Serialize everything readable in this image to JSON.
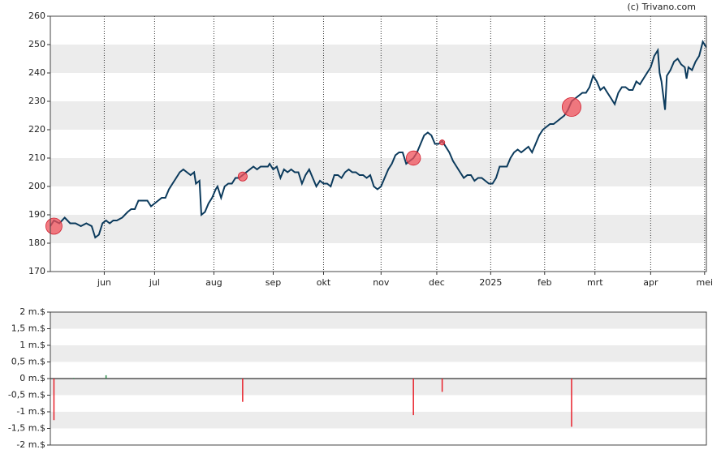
{
  "chart_data": [
    {
      "type": "line",
      "credit": "(c) Trivano.com",
      "color": "#0b3a5c",
      "x": [
        0,
        2,
        5,
        8,
        11,
        14,
        17,
        20,
        23,
        25,
        27,
        29,
        31,
        33,
        35,
        37,
        40,
        43,
        45,
        47,
        49,
        51,
        54,
        56,
        58,
        60,
        62,
        64,
        66,
        68,
        70,
        72,
        74,
        76,
        78,
        80,
        81,
        83,
        84,
        86,
        88,
        90,
        92,
        93,
        95,
        97,
        99,
        101,
        103,
        105,
        107,
        109,
        111,
        113,
        115,
        117,
        119,
        121,
        122,
        124,
        126,
        128,
        130,
        132,
        134,
        136,
        138,
        140,
        142,
        144,
        146,
        148,
        150,
        152,
        154,
        156,
        158,
        160,
        162,
        164,
        166,
        168,
        170,
        172,
        174,
        176,
        178,
        180,
        182,
        184,
        186,
        188,
        190,
        192,
        194,
        196,
        198,
        200,
        202,
        204,
        206,
        208,
        210,
        212,
        214,
        216,
        218,
        220,
        222,
        224,
        226,
        228,
        230,
        232,
        234,
        236,
        238,
        240,
        242,
        244,
        246,
        248,
        250,
        252,
        254,
        256,
        258,
        260,
        262,
        264,
        266,
        268,
        270,
        272,
        274,
        276,
        278,
        280,
        282,
        284,
        286,
        288,
        290,
        292,
        294,
        296,
        298,
        300,
        302,
        304,
        306,
        308,
        310,
        312,
        314,
        316,
        318,
        320,
        322,
        324,
        326,
        328,
        330,
        332,
        334,
        336,
        338,
        339,
        340,
        342,
        343,
        345,
        347,
        349,
        351,
        353,
        354,
        355,
        357,
        359,
        361,
        363,
        365
      ],
      "values": [
        186,
        188,
        187,
        189,
        187,
        187,
        186,
        187,
        186,
        182,
        183,
        187,
        188,
        187,
        188,
        188,
        189,
        191,
        192,
        192,
        195,
        195,
        195,
        193,
        194,
        195,
        196,
        196,
        199,
        201,
        203,
        205,
        206,
        205,
        204,
        205,
        201,
        202,
        190,
        191,
        194,
        196,
        199,
        200,
        196,
        200,
        201,
        201,
        203,
        203,
        204,
        205,
        206,
        207,
        206,
        207,
        207,
        207,
        208,
        206,
        207,
        203,
        206,
        205,
        206,
        205,
        205,
        201,
        204,
        206,
        203,
        200,
        202,
        201,
        201,
        200,
        204,
        204,
        203,
        205,
        206,
        205,
        205,
        204,
        204,
        203,
        204,
        200,
        199,
        200,
        203,
        206,
        208,
        211,
        212,
        212,
        208,
        209,
        210,
        212,
        215,
        218,
        219,
        218,
        215,
        215,
        216,
        214,
        212,
        209,
        207,
        205,
        203,
        204,
        204,
        202,
        203,
        203,
        202,
        201,
        201,
        203,
        207,
        207,
        207,
        210,
        212,
        213,
        212,
        213,
        214,
        212,
        215,
        218,
        220,
        221,
        222,
        222,
        223,
        224,
        225,
        227,
        230,
        231,
        232,
        233,
        233,
        235,
        239,
        237,
        234,
        235,
        233,
        231,
        229,
        233,
        235,
        235,
        234,
        234,
        237,
        236,
        238,
        240,
        242,
        246,
        248,
        240,
        237,
        227,
        239,
        241,
        244,
        245,
        243,
        242,
        238,
        242,
        241,
        244,
        246,
        251,
        249
      ],
      "markers": {
        "color": "#f0505a",
        "x": [
          2,
          107,
          202,
          218,
          290
        ],
        "values": [
          186,
          203.5,
          210,
          215.5,
          228
        ]
      },
      "xlim": [
        0,
        365
      ],
      "ylim": [
        170,
        260
      ],
      "yticks": [
        170,
        180,
        190,
        200,
        210,
        220,
        230,
        240,
        250,
        260
      ],
      "xticks": [
        {
          "value": 30,
          "label": "jun"
        },
        {
          "value": 58,
          "label": "jul"
        },
        {
          "value": 91,
          "label": "aug"
        },
        {
          "value": 124,
          "label": "sep"
        },
        {
          "value": 152,
          "label": "okt"
        },
        {
          "value": 184,
          "label": "nov"
        },
        {
          "value": 215,
          "label": "dec"
        },
        {
          "value": 245,
          "label": "2025"
        },
        {
          "value": 275,
          "label": "feb"
        },
        {
          "value": 303,
          "label": "mrt"
        },
        {
          "value": 334,
          "label": "apr"
        },
        {
          "value": 364,
          "label": "mei"
        }
      ],
      "grid": true
    },
    {
      "type": "bar",
      "color_negative": "#e8202a",
      "color_positive": "#2a8a4a",
      "x": [
        2,
        13,
        31,
        107,
        202,
        218,
        290
      ],
      "values": [
        -1.25,
        0.02,
        0.1,
        -0.7,
        -1.1,
        -0.4,
        -1.45
      ],
      "xlim": [
        0,
        365
      ],
      "ylim": [
        -2,
        2
      ],
      "yticks": [
        {
          "value": -2,
          "label": "-2 m.$"
        },
        {
          "value": -1.5,
          "label": "-1,5 m.$"
        },
        {
          "value": -1,
          "label": "-1 m.$"
        },
        {
          "value": -0.5,
          "label": "-0,5 m.$"
        },
        {
          "value": 0,
          "label": "0 m.$"
        },
        {
          "value": 0.5,
          "label": "0,5 m.$"
        },
        {
          "value": 1,
          "label": "1 m.$"
        },
        {
          "value": 1.5,
          "label": "1,5 m.$"
        },
        {
          "value": 2,
          "label": "2 m.$"
        }
      ],
      "grid": true
    }
  ]
}
